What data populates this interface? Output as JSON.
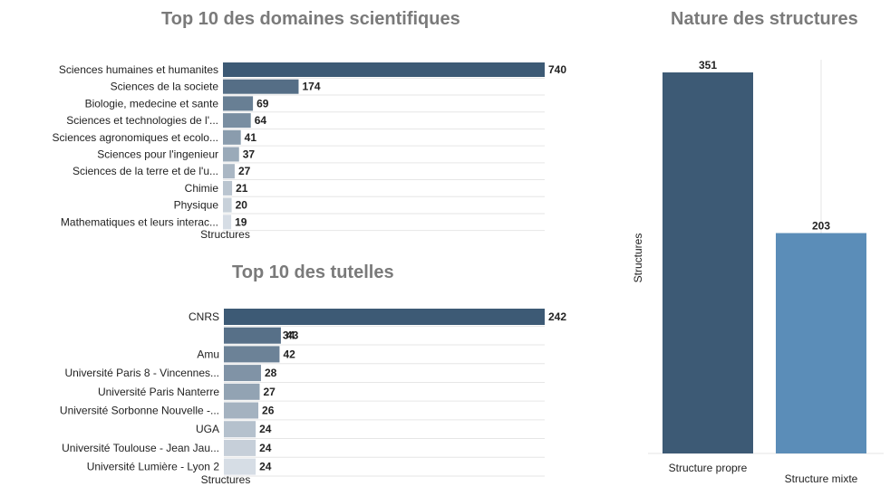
{
  "chart_data": [
    {
      "type": "bar",
      "orientation": "horizontal",
      "title": "Top 10 des domaines scientifiques",
      "xlabel": "Structures",
      "categories": [
        "Sciences humaines et humanites",
        "Sciences de la societe",
        "Biologie, medecine et sante",
        "Sciences et technologies de l'...",
        "Sciences agronomiques et ecolo...",
        "Sciences pour l'ingenieur",
        "Sciences de la terre et de l'u...",
        "Chimie",
        "Physique",
        "Mathematiques et leurs interac..."
      ],
      "values": [
        740,
        174,
        69,
        64,
        41,
        37,
        27,
        21,
        20,
        19
      ],
      "xlim": [
        0,
        740
      ]
    },
    {
      "type": "bar",
      "orientation": "horizontal",
      "title": "Top 10 des tutelles",
      "xlabel": "Structures",
      "categories": [
        "CNRS",
        "",
        "Amu",
        "Université Paris 8 - Vincennes...",
        "Université Paris Nanterre",
        "Université Sorbonne Nouvelle -...",
        "UGA",
        "Université Toulouse - Jean Jau...",
        "Université Lumière - Lyon 2"
      ],
      "values": [
        242,
        43,
        42,
        28,
        27,
        26,
        24,
        24,
        24
      ],
      "overlapping_label_values": [
        34,
        43
      ],
      "xlim": [
        0,
        242
      ]
    },
    {
      "type": "bar",
      "orientation": "vertical",
      "title": "Nature des structures",
      "ylabel": "Structures",
      "categories": [
        "Structure propre",
        "Structure mixte"
      ],
      "values": [
        351,
        203
      ],
      "ylim": [
        0,
        351
      ]
    }
  ],
  "colors": {
    "title": "#7a7a7a",
    "dark_bar": "#3d5a75",
    "mid_bar": "#5b8db8",
    "light_bar": "#dde3ea",
    "grid": "#e6e6e6"
  }
}
